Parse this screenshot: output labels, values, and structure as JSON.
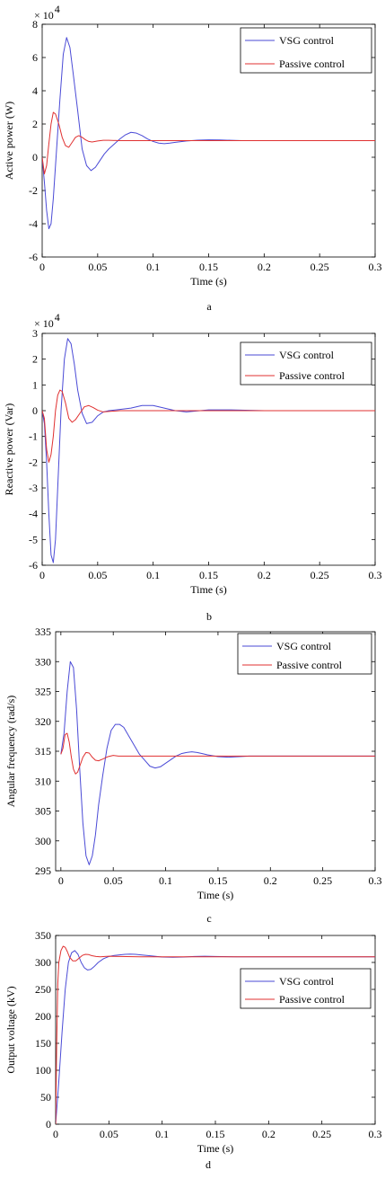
{
  "chart_data": [
    {
      "type": "line",
      "panel_label": "a",
      "xlabel": "Time (s)",
      "ylabel": "Active power (W)",
      "y_exponent_label": "× 10",
      "y_exponent": "4",
      "xlim": [
        0,
        0.3
      ],
      "ylim": [
        -6,
        8
      ],
      "xticks": [
        "0",
        "0.05",
        "0.1",
        "0.15",
        "0.2",
        "0.25",
        "0.3"
      ],
      "yticks": [
        "-6",
        "-4",
        "-2",
        "0",
        "2",
        "4",
        "6",
        "8"
      ],
      "legend_position": "top-right",
      "grid": false,
      "series": [
        {
          "name": "VSG control",
          "color": "#4a4ad6",
          "x": [
            0,
            0.002,
            0.004,
            0.006,
            0.008,
            0.01,
            0.013,
            0.016,
            0.019,
            0.022,
            0.025,
            0.028,
            0.032,
            0.036,
            0.04,
            0.044,
            0.048,
            0.052,
            0.056,
            0.06,
            0.065,
            0.07,
            0.075,
            0.08,
            0.085,
            0.09,
            0.095,
            0.1,
            0.105,
            0.11,
            0.115,
            0.12,
            0.13,
            0.14,
            0.15,
            0.16,
            0.17,
            0.18,
            0.2,
            0.22,
            0.25,
            0.3
          ],
          "y": [
            0,
            -1.5,
            -3.2,
            -4.3,
            -4.0,
            -2.5,
            0.5,
            3.5,
            6.2,
            7.2,
            6.6,
            5.0,
            2.8,
            0.5,
            -0.5,
            -0.8,
            -0.6,
            -0.2,
            0.2,
            0.5,
            0.8,
            1.1,
            1.35,
            1.5,
            1.45,
            1.3,
            1.1,
            0.95,
            0.85,
            0.82,
            0.85,
            0.9,
            0.98,
            1.03,
            1.05,
            1.04,
            1.02,
            1.0,
            1.0,
            1.0,
            1.0,
            1.0
          ]
        },
        {
          "name": "Passive control",
          "color": "#e03030",
          "x": [
            0,
            0.002,
            0.004,
            0.006,
            0.008,
            0.01,
            0.012,
            0.015,
            0.018,
            0.021,
            0.024,
            0.027,
            0.03,
            0.033,
            0.036,
            0.039,
            0.042,
            0.045,
            0.05,
            0.055,
            0.06,
            0.07,
            0.08,
            0.1,
            0.15,
            0.2,
            0.3
          ],
          "y": [
            0,
            -1.0,
            -0.5,
            0.8,
            2.0,
            2.7,
            2.6,
            2.0,
            1.2,
            0.7,
            0.6,
            0.9,
            1.2,
            1.3,
            1.2,
            1.05,
            0.95,
            0.92,
            0.98,
            1.02,
            1.02,
            1.0,
            1.0,
            1.0,
            1.0,
            1.0,
            1.0
          ]
        }
      ]
    },
    {
      "type": "line",
      "panel_label": "b",
      "xlabel": "Time (s)",
      "ylabel": "Reactive power (Var)",
      "y_exponent_label": "× 10",
      "y_exponent": "4",
      "xlim": [
        0,
        0.3
      ],
      "ylim": [
        -6,
        3
      ],
      "xticks": [
        "0",
        "0.05",
        "0.1",
        "0.15",
        "0.2",
        "0.25",
        "0.3"
      ],
      "yticks": [
        "-6",
        "-5",
        "-4",
        "-3",
        "-2",
        "-1",
        "0",
        "1",
        "2",
        "3"
      ],
      "legend_position": "top-right",
      "grid": false,
      "series": [
        {
          "name": "VSG control",
          "color": "#4a4ad6",
          "x": [
            0,
            0.002,
            0.004,
            0.006,
            0.008,
            0.01,
            0.012,
            0.014,
            0.017,
            0.02,
            0.023,
            0.026,
            0.029,
            0.032,
            0.036,
            0.04,
            0.045,
            0.05,
            0.055,
            0.06,
            0.07,
            0.08,
            0.09,
            0.1,
            0.11,
            0.12,
            0.13,
            0.15,
            0.17,
            0.2,
            0.3
          ],
          "y": [
            0,
            -0.5,
            -2.0,
            -4.0,
            -5.6,
            -5.9,
            -5.0,
            -3.0,
            0,
            2.0,
            2.8,
            2.6,
            1.8,
            0.8,
            -0.1,
            -0.5,
            -0.45,
            -0.2,
            -0.05,
            0,
            0.05,
            0.1,
            0.2,
            0.2,
            0.1,
            0,
            -0.05,
            0.03,
            0.03,
            0,
            0
          ]
        },
        {
          "name": "Passive control",
          "color": "#e03030",
          "x": [
            0,
            0.002,
            0.004,
            0.006,
            0.008,
            0.01,
            0.012,
            0.014,
            0.016,
            0.018,
            0.021,
            0.024,
            0.027,
            0.03,
            0.034,
            0.038,
            0.042,
            0.046,
            0.05,
            0.055,
            0.06,
            0.07,
            0.08,
            0.1,
            0.2,
            0.3
          ],
          "y": [
            0,
            -0.3,
            -1.5,
            -2.0,
            -1.7,
            -1.0,
            0,
            0.6,
            0.8,
            0.75,
            0.3,
            -0.3,
            -0.45,
            -0.35,
            -0.1,
            0.15,
            0.2,
            0.12,
            0.02,
            -0.05,
            -0.03,
            0,
            0,
            0,
            0,
            0
          ]
        }
      ]
    },
    {
      "type": "line",
      "panel_label": "c",
      "xlabel": "Time (s)",
      "ylabel": "Angular frequency (rad/s)",
      "xlim": [
        -0.005,
        0.3
      ],
      "ylim": [
        295,
        335
      ],
      "xticks": [
        "0",
        "0.05",
        "0.1",
        "0.15",
        "0.2",
        "0.25",
        "0.3"
      ],
      "yticks": [
        "295",
        "300",
        "305",
        "310",
        "315",
        "320",
        "325",
        "330",
        "335"
      ],
      "legend_position": "top-right",
      "grid": false,
      "series": [
        {
          "name": "VSG control",
          "color": "#4a4ad6",
          "x": [
            0,
            0.003,
            0.006,
            0.009,
            0.012,
            0.015,
            0.018,
            0.021,
            0.024,
            0.027,
            0.03,
            0.033,
            0.036,
            0.04,
            0.044,
            0.048,
            0.052,
            0.056,
            0.06,
            0.065,
            0.07,
            0.075,
            0.08,
            0.085,
            0.09,
            0.095,
            0.1,
            0.105,
            0.11,
            0.115,
            0.12,
            0.125,
            0.13,
            0.135,
            0.14,
            0.15,
            0.16,
            0.17,
            0.18,
            0.2,
            0.22,
            0.25,
            0.3
          ],
          "y": [
            314.5,
            318,
            325,
            330,
            329,
            322,
            312,
            303,
            297.5,
            296,
            297.5,
            301,
            306,
            311,
            315.5,
            318.5,
            319.5,
            319.5,
            319,
            317.5,
            316,
            314.5,
            313.5,
            312.5,
            312.2,
            312.4,
            313,
            313.6,
            314.2,
            314.6,
            314.8,
            314.9,
            314.8,
            314.6,
            314.4,
            314.1,
            314.0,
            314.1,
            314.2,
            314.2,
            314.2,
            314.2,
            314.2
          ]
        },
        {
          "name": "Passive control",
          "color": "#e03030",
          "x": [
            0,
            0.002,
            0.004,
            0.006,
            0.008,
            0.01,
            0.012,
            0.014,
            0.016,
            0.018,
            0.021,
            0.024,
            0.027,
            0.03,
            0.033,
            0.036,
            0.04,
            0.045,
            0.05,
            0.055,
            0.06,
            0.07,
            0.1,
            0.2,
            0.3
          ],
          "y": [
            314.5,
            315.5,
            317.8,
            318,
            316.5,
            314,
            312,
            311.2,
            311.5,
            312.5,
            314,
            314.8,
            314.7,
            314,
            313.5,
            313.4,
            313.7,
            314.1,
            314.3,
            314.2,
            314.2,
            314.2,
            314.2,
            314.2,
            314.2
          ]
        }
      ]
    },
    {
      "type": "line",
      "panel_label": "d",
      "xlabel": "Time (s)",
      "ylabel": "Output voltage (kV)",
      "xlim": [
        0,
        0.3
      ],
      "ylim": [
        0,
        350
      ],
      "xticks": [
        "0",
        "0.05",
        "0.1",
        "0.15",
        "0.2",
        "0.25",
        "0.3"
      ],
      "yticks": [
        "0",
        "50",
        "100",
        "150",
        "200",
        "250",
        "300",
        "350"
      ],
      "legend_position": "middle-right",
      "grid": false,
      "series": [
        {
          "name": "VSG control",
          "color": "#4a4ad6",
          "x": [
            0,
            0.003,
            0.006,
            0.009,
            0.012,
            0.015,
            0.018,
            0.021,
            0.024,
            0.027,
            0.03,
            0.033,
            0.036,
            0.04,
            0.045,
            0.05,
            0.055,
            0.06,
            0.065,
            0.07,
            0.075,
            0.08,
            0.09,
            0.1,
            0.11,
            0.12,
            0.13,
            0.14,
            0.15,
            0.17,
            0.2,
            0.3
          ],
          "y": [
            0,
            80,
            170,
            250,
            300,
            318,
            322,
            315,
            300,
            290,
            286,
            287,
            292,
            300,
            307,
            311,
            313,
            314,
            315,
            315.5,
            315,
            314,
            312,
            310,
            309.5,
            310,
            311,
            311.5,
            311,
            310.5,
            310.5,
            310.5
          ]
        },
        {
          "name": "Passive control",
          "color": "#e03030",
          "x": [
            0,
            0.001,
            0.002,
            0.003,
            0.005,
            0.007,
            0.009,
            0.011,
            0.013,
            0.016,
            0.019,
            0.022,
            0.025,
            0.028,
            0.031,
            0.034,
            0.038,
            0.042,
            0.046,
            0.05,
            0.06,
            0.08,
            0.1,
            0.2,
            0.3
          ],
          "y": [
            0,
            150,
            260,
            300,
            322,
            330,
            328,
            320,
            310,
            303,
            303,
            308,
            313,
            315,
            314.5,
            312.5,
            311,
            310.5,
            311,
            311.5,
            311,
            310.5,
            310.5,
            310.5,
            310.5
          ]
        }
      ]
    }
  ]
}
